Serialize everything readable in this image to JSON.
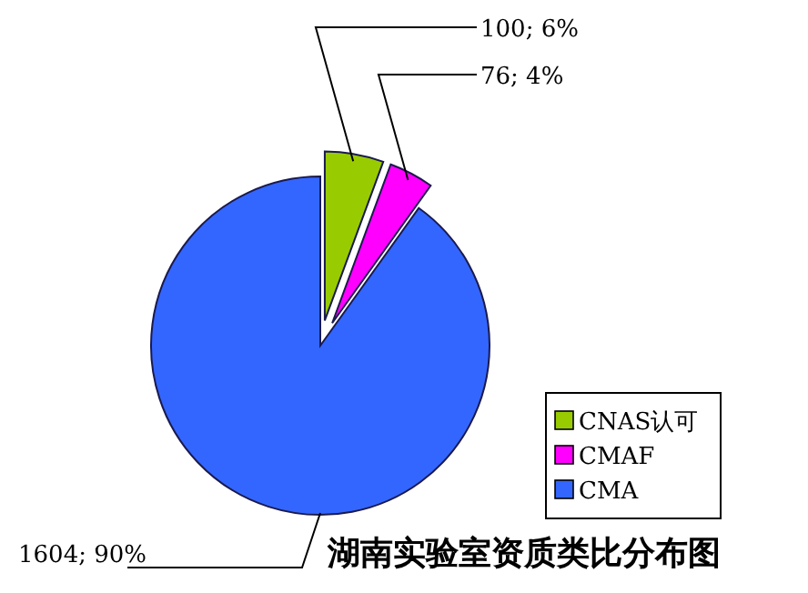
{
  "chart_data": {
    "type": "pie",
    "title": "湖南实验室资质类比分布图",
    "categories": [
      "CNAS认可",
      "CMAF",
      "CMA"
    ],
    "values": [
      100,
      76,
      1604
    ],
    "colors": [
      "#99cc00",
      "#ff00ff",
      "#3366ff"
    ],
    "value_labels": [
      "100; 6%",
      "76; 4%",
      "1604; 90%"
    ],
    "legend": "bottom right"
  }
}
